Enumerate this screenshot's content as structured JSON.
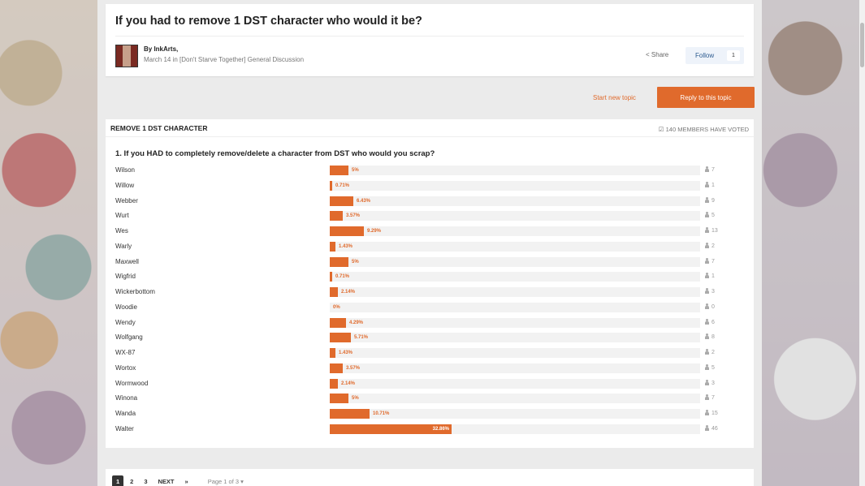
{
  "topic": {
    "title": "If you had to remove 1 DST character who would it be?",
    "author_line": "By InkArts,",
    "meta": "March 14 in [Don't Starve Together] General Discussion",
    "share_label": "Share",
    "follow_label": "Follow",
    "follow_count": "1"
  },
  "actions": {
    "start_new_topic": "Start new topic",
    "reply": "Reply to this topic"
  },
  "poll": {
    "title": "REMOVE 1 DST CHARACTER",
    "voted": "140 MEMBERS HAVE VOTED",
    "question": "1. If you HAD to completely remove/delete a character from DST who would you scrap?",
    "options": [
      {
        "label": "Wilson",
        "pct": "5%",
        "value": 5,
        "votes": "7"
      },
      {
        "label": "Willow",
        "pct": "0.71%",
        "value": 0.71,
        "votes": "1"
      },
      {
        "label": "Webber",
        "pct": "6.43%",
        "value": 6.43,
        "votes": "9"
      },
      {
        "label": "Wurt",
        "pct": "3.57%",
        "value": 3.57,
        "votes": "5"
      },
      {
        "label": "Wes",
        "pct": "9.29%",
        "value": 9.29,
        "votes": "13"
      },
      {
        "label": "Warly",
        "pct": "1.43%",
        "value": 1.43,
        "votes": "2"
      },
      {
        "label": "Maxwell",
        "pct": "5%",
        "value": 5,
        "votes": "7"
      },
      {
        "label": "Wigfrid",
        "pct": "0.71%",
        "value": 0.71,
        "votes": "1"
      },
      {
        "label": "Wickerbottom",
        "pct": "2.14%",
        "value": 2.14,
        "votes": "3"
      },
      {
        "label": "Woodie",
        "pct": "0%",
        "value": 0,
        "votes": "0"
      },
      {
        "label": "Wendy",
        "pct": "4.29%",
        "value": 4.29,
        "votes": "6"
      },
      {
        "label": "Wolfgang",
        "pct": "5.71%",
        "value": 5.71,
        "votes": "8"
      },
      {
        "label": "WX-87",
        "pct": "1.43%",
        "value": 1.43,
        "votes": "2"
      },
      {
        "label": "Wortox",
        "pct": "3.57%",
        "value": 3.57,
        "votes": "5"
      },
      {
        "label": "Wormwood",
        "pct": "2.14%",
        "value": 2.14,
        "votes": "3"
      },
      {
        "label": "Winona",
        "pct": "5%",
        "value": 5,
        "votes": "7"
      },
      {
        "label": "Wanda",
        "pct": "10.71%",
        "value": 10.71,
        "votes": "15"
      },
      {
        "label": "Walter",
        "pct": "32.86%",
        "value": 32.86,
        "votes": "46"
      }
    ]
  },
  "pagination": {
    "pages": [
      "1",
      "2",
      "3"
    ],
    "next": "NEXT",
    "last": "»",
    "info": "Page 1 of 3"
  },
  "colors": {
    "accent": "#e06a2c",
    "link": "#2b5a8f"
  }
}
